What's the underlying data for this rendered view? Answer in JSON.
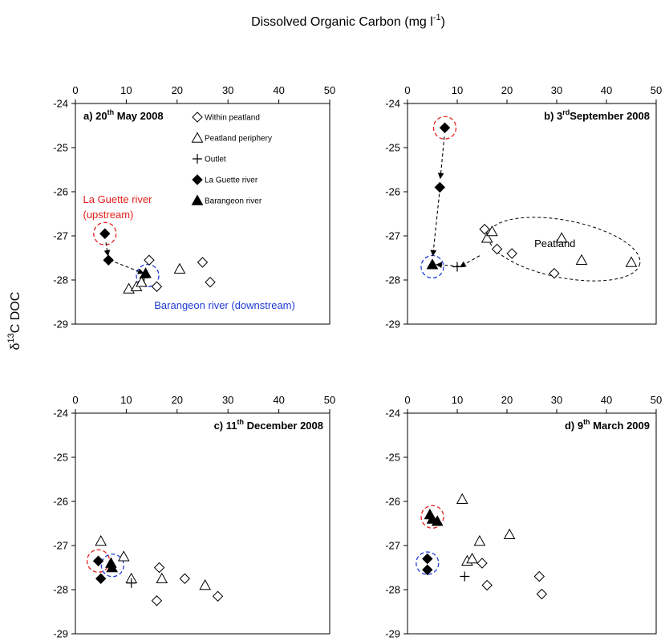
{
  "figure": {
    "top_label": "Dissolved Organic Carbon (mg l",
    "top_label_sup": "-1",
    "top_label_end": ")",
    "y_label_prefix": "δ",
    "y_label_sup": "13",
    "y_label_rest": "C DOC"
  },
  "legend": [
    {
      "label": "Within peatland",
      "symbol": "diamond-open"
    },
    {
      "label": "Peatland periphery",
      "symbol": "triangle-open"
    },
    {
      "label": "Outlet",
      "symbol": "plus"
    },
    {
      "label": "La Guette river",
      "symbol": "diamond-filled"
    },
    {
      "label": "Barangeon river",
      "symbol": "triangle-filled"
    }
  ],
  "colors": {
    "upstream": "#e0201b",
    "downstream": "#1f3ad6",
    "peatland_ellipse": "#000000"
  },
  "chart_data": [
    {
      "type": "scatter",
      "panel": "a",
      "title_parts": [
        "a) 20",
        "th",
        " May 2008"
      ],
      "xlim": [
        0,
        50
      ],
      "ylim": [
        -29,
        -24
      ],
      "xticks": [
        0,
        10,
        20,
        30,
        40,
        50
      ],
      "yticks": [
        -24,
        -25,
        -26,
        -27,
        -28,
        -29
      ],
      "series": [
        {
          "name": "Within peatland",
          "symbol": "diamond-open",
          "points": [
            [
              14.5,
              -27.55
            ],
            [
              16.0,
              -28.15
            ],
            [
              25.0,
              -27.6
            ],
            [
              26.5,
              -28.05
            ]
          ]
        },
        {
          "name": "Peatland periphery",
          "symbol": "triangle-open",
          "points": [
            [
              10.5,
              -28.2
            ],
            [
              12.0,
              -28.15
            ],
            [
              13.0,
              -28.05
            ],
            [
              20.5,
              -27.75
            ]
          ]
        },
        {
          "name": "Outlet",
          "symbol": "plus",
          "points": [
            [
              13.5,
              -27.95
            ]
          ]
        },
        {
          "name": "La Guette river",
          "symbol": "diamond-filled",
          "points": [
            [
              5.8,
              -26.95
            ],
            [
              6.5,
              -27.55
            ]
          ]
        },
        {
          "name": "Barangeon river",
          "symbol": "triangle-filled",
          "points": [
            [
              13.8,
              -27.85
            ]
          ]
        }
      ],
      "arrows": [
        [
          [
            6.0,
            -27.15
          ],
          [
            6.4,
            -27.45
          ]
        ],
        [
          [
            6.8,
            -27.55
          ],
          [
            13.4,
            -27.85
          ]
        ]
      ],
      "circles": [
        {
          "x": 5.8,
          "y": -26.95,
          "color": "upstream"
        },
        {
          "x": 14.2,
          "y": -27.9,
          "color": "downstream"
        }
      ],
      "annotations": [
        {
          "text": "La Guette river",
          "x": 1.5,
          "y": -26.25,
          "color": "upstream"
        },
        {
          "text": "(upstream)",
          "x": 1.5,
          "y": -26.6,
          "color": "upstream"
        },
        {
          "text": "Barangeon river (downstream)",
          "x": 15.5,
          "y": -28.65,
          "color": "downstream"
        }
      ],
      "show_legend": true
    },
    {
      "type": "scatter",
      "panel": "b",
      "title_parts": [
        "b) 3",
        "rd",
        "September 2008"
      ],
      "xlim": [
        0,
        50
      ],
      "ylim": [
        -29,
        -24
      ],
      "xticks": [
        0,
        10,
        20,
        30,
        40,
        50
      ],
      "yticks": [
        -24,
        -25,
        -26,
        -27,
        -28,
        -29
      ],
      "series": [
        {
          "name": "Within peatland",
          "symbol": "diamond-open",
          "points": [
            [
              15.5,
              -26.85
            ],
            [
              18.0,
              -27.3
            ],
            [
              21.0,
              -27.4
            ],
            [
              29.5,
              -27.85
            ]
          ]
        },
        {
          "name": "Peatland periphery",
          "symbol": "triangle-open",
          "points": [
            [
              16.0,
              -27.05
            ],
            [
              17.0,
              -26.9
            ],
            [
              31.0,
              -27.05
            ],
            [
              35.0,
              -27.55
            ],
            [
              45.0,
              -27.6
            ]
          ]
        },
        {
          "name": "Outlet",
          "symbol": "plus",
          "points": [
            [
              10.0,
              -27.7
            ]
          ]
        },
        {
          "name": "La Guette river",
          "symbol": "diamond-filled",
          "points": [
            [
              7.5,
              -24.55
            ],
            [
              6.5,
              -25.9
            ]
          ]
        },
        {
          "name": "Barangeon river",
          "symbol": "triangle-filled",
          "points": [
            [
              5.0,
              -27.65
            ]
          ]
        }
      ],
      "arrows": [
        [
          [
            7.4,
            -24.75
          ],
          [
            6.6,
            -25.7
          ]
        ],
        [
          [
            6.4,
            -26.05
          ],
          [
            5.1,
            -27.45
          ]
        ],
        [
          [
            11.5,
            -27.7
          ],
          [
            5.8,
            -27.65
          ]
        ],
        [
          [
            14.5,
            -27.45
          ],
          [
            10.6,
            -27.7
          ]
        ]
      ],
      "circles": [
        {
          "x": 7.5,
          "y": -24.55,
          "color": "upstream"
        },
        {
          "x": 5.0,
          "y": -27.7,
          "color": "downstream"
        }
      ],
      "ellipses": [
        {
          "cx": 31.5,
          "cy": -27.3,
          "rx": 15.5,
          "ry": 0.65,
          "rotate": 11,
          "color": "peatland_ellipse"
        }
      ],
      "annotations": [
        {
          "text": "Peatland",
          "x": 25.5,
          "y": -27.25,
          "color": "peatland_ellipse"
        }
      ],
      "show_legend": false
    },
    {
      "type": "scatter",
      "panel": "c",
      "title_parts": [
        "c) 11",
        "th",
        " December 2008"
      ],
      "xlim": [
        0,
        50
      ],
      "ylim": [
        -29,
        -24
      ],
      "xticks": [
        0,
        10,
        20,
        30,
        40,
        50
      ],
      "yticks": [
        -24,
        -25,
        -26,
        -27,
        -28,
        -29
      ],
      "series": [
        {
          "name": "Within peatland",
          "symbol": "diamond-open",
          "points": [
            [
              16.0,
              -28.25
            ],
            [
              16.5,
              -27.5
            ],
            [
              21.5,
              -27.75
            ],
            [
              28.0,
              -28.15
            ]
          ]
        },
        {
          "name": "Peatland periphery",
          "symbol": "triangle-open",
          "points": [
            [
              5.0,
              -26.9
            ],
            [
              9.5,
              -27.25
            ],
            [
              11.0,
              -27.75
            ],
            [
              17.0,
              -27.75
            ],
            [
              25.5,
              -27.9
            ]
          ]
        },
        {
          "name": "Outlet",
          "symbol": "plus",
          "points": [
            [
              11.0,
              -27.85
            ]
          ]
        },
        {
          "name": "La Guette river",
          "symbol": "diamond-filled",
          "points": [
            [
              4.5,
              -27.35
            ],
            [
              5.0,
              -27.75
            ]
          ]
        },
        {
          "name": "Barangeon river",
          "symbol": "triangle-filled",
          "points": [
            [
              7.0,
              -27.4
            ],
            [
              7.2,
              -27.5
            ]
          ]
        }
      ],
      "arrows": [],
      "circles": [
        {
          "x": 4.5,
          "y": -27.35,
          "color": "upstream"
        },
        {
          "x": 7.3,
          "y": -27.45,
          "color": "downstream"
        }
      ],
      "annotations": [],
      "show_legend": false
    },
    {
      "type": "scatter",
      "panel": "d",
      "title_parts": [
        "d) 9",
        "th",
        " March 2009"
      ],
      "xlim": [
        0,
        50
      ],
      "ylim": [
        -29,
        -24
      ],
      "xticks": [
        0,
        10,
        20,
        30,
        40,
        50
      ],
      "yticks": [
        -24,
        -25,
        -26,
        -27,
        -28,
        -29
      ],
      "series": [
        {
          "name": "Within peatland",
          "symbol": "diamond-open",
          "points": [
            [
              15.0,
              -27.4
            ],
            [
              16.0,
              -27.9
            ],
            [
              26.5,
              -27.7
            ],
            [
              27.0,
              -28.1
            ]
          ]
        },
        {
          "name": "Peatland periphery",
          "symbol": "triangle-open",
          "points": [
            [
              11.0,
              -25.95
            ],
            [
              12.0,
              -27.35
            ],
            [
              13.0,
              -27.3
            ],
            [
              14.5,
              -26.9
            ],
            [
              20.5,
              -26.75
            ]
          ]
        },
        {
          "name": "Outlet",
          "symbol": "plus",
          "points": [
            [
              11.5,
              -27.7
            ]
          ]
        },
        {
          "name": "La Guette river",
          "symbol": "diamond-filled",
          "points": [
            [
              4.0,
              -27.3
            ],
            [
              4.0,
              -27.55
            ]
          ]
        },
        {
          "name": "Barangeon river",
          "symbol": "triangle-filled",
          "points": [
            [
              4.5,
              -26.3
            ],
            [
              5.0,
              -26.4
            ],
            [
              6.0,
              -26.45
            ]
          ]
        }
      ],
      "arrows": [],
      "circles": [
        {
          "x": 5.0,
          "y": -26.35,
          "color": "upstream"
        },
        {
          "x": 4.0,
          "y": -27.4,
          "color": "downstream"
        }
      ],
      "annotations": [],
      "show_legend": false
    }
  ]
}
